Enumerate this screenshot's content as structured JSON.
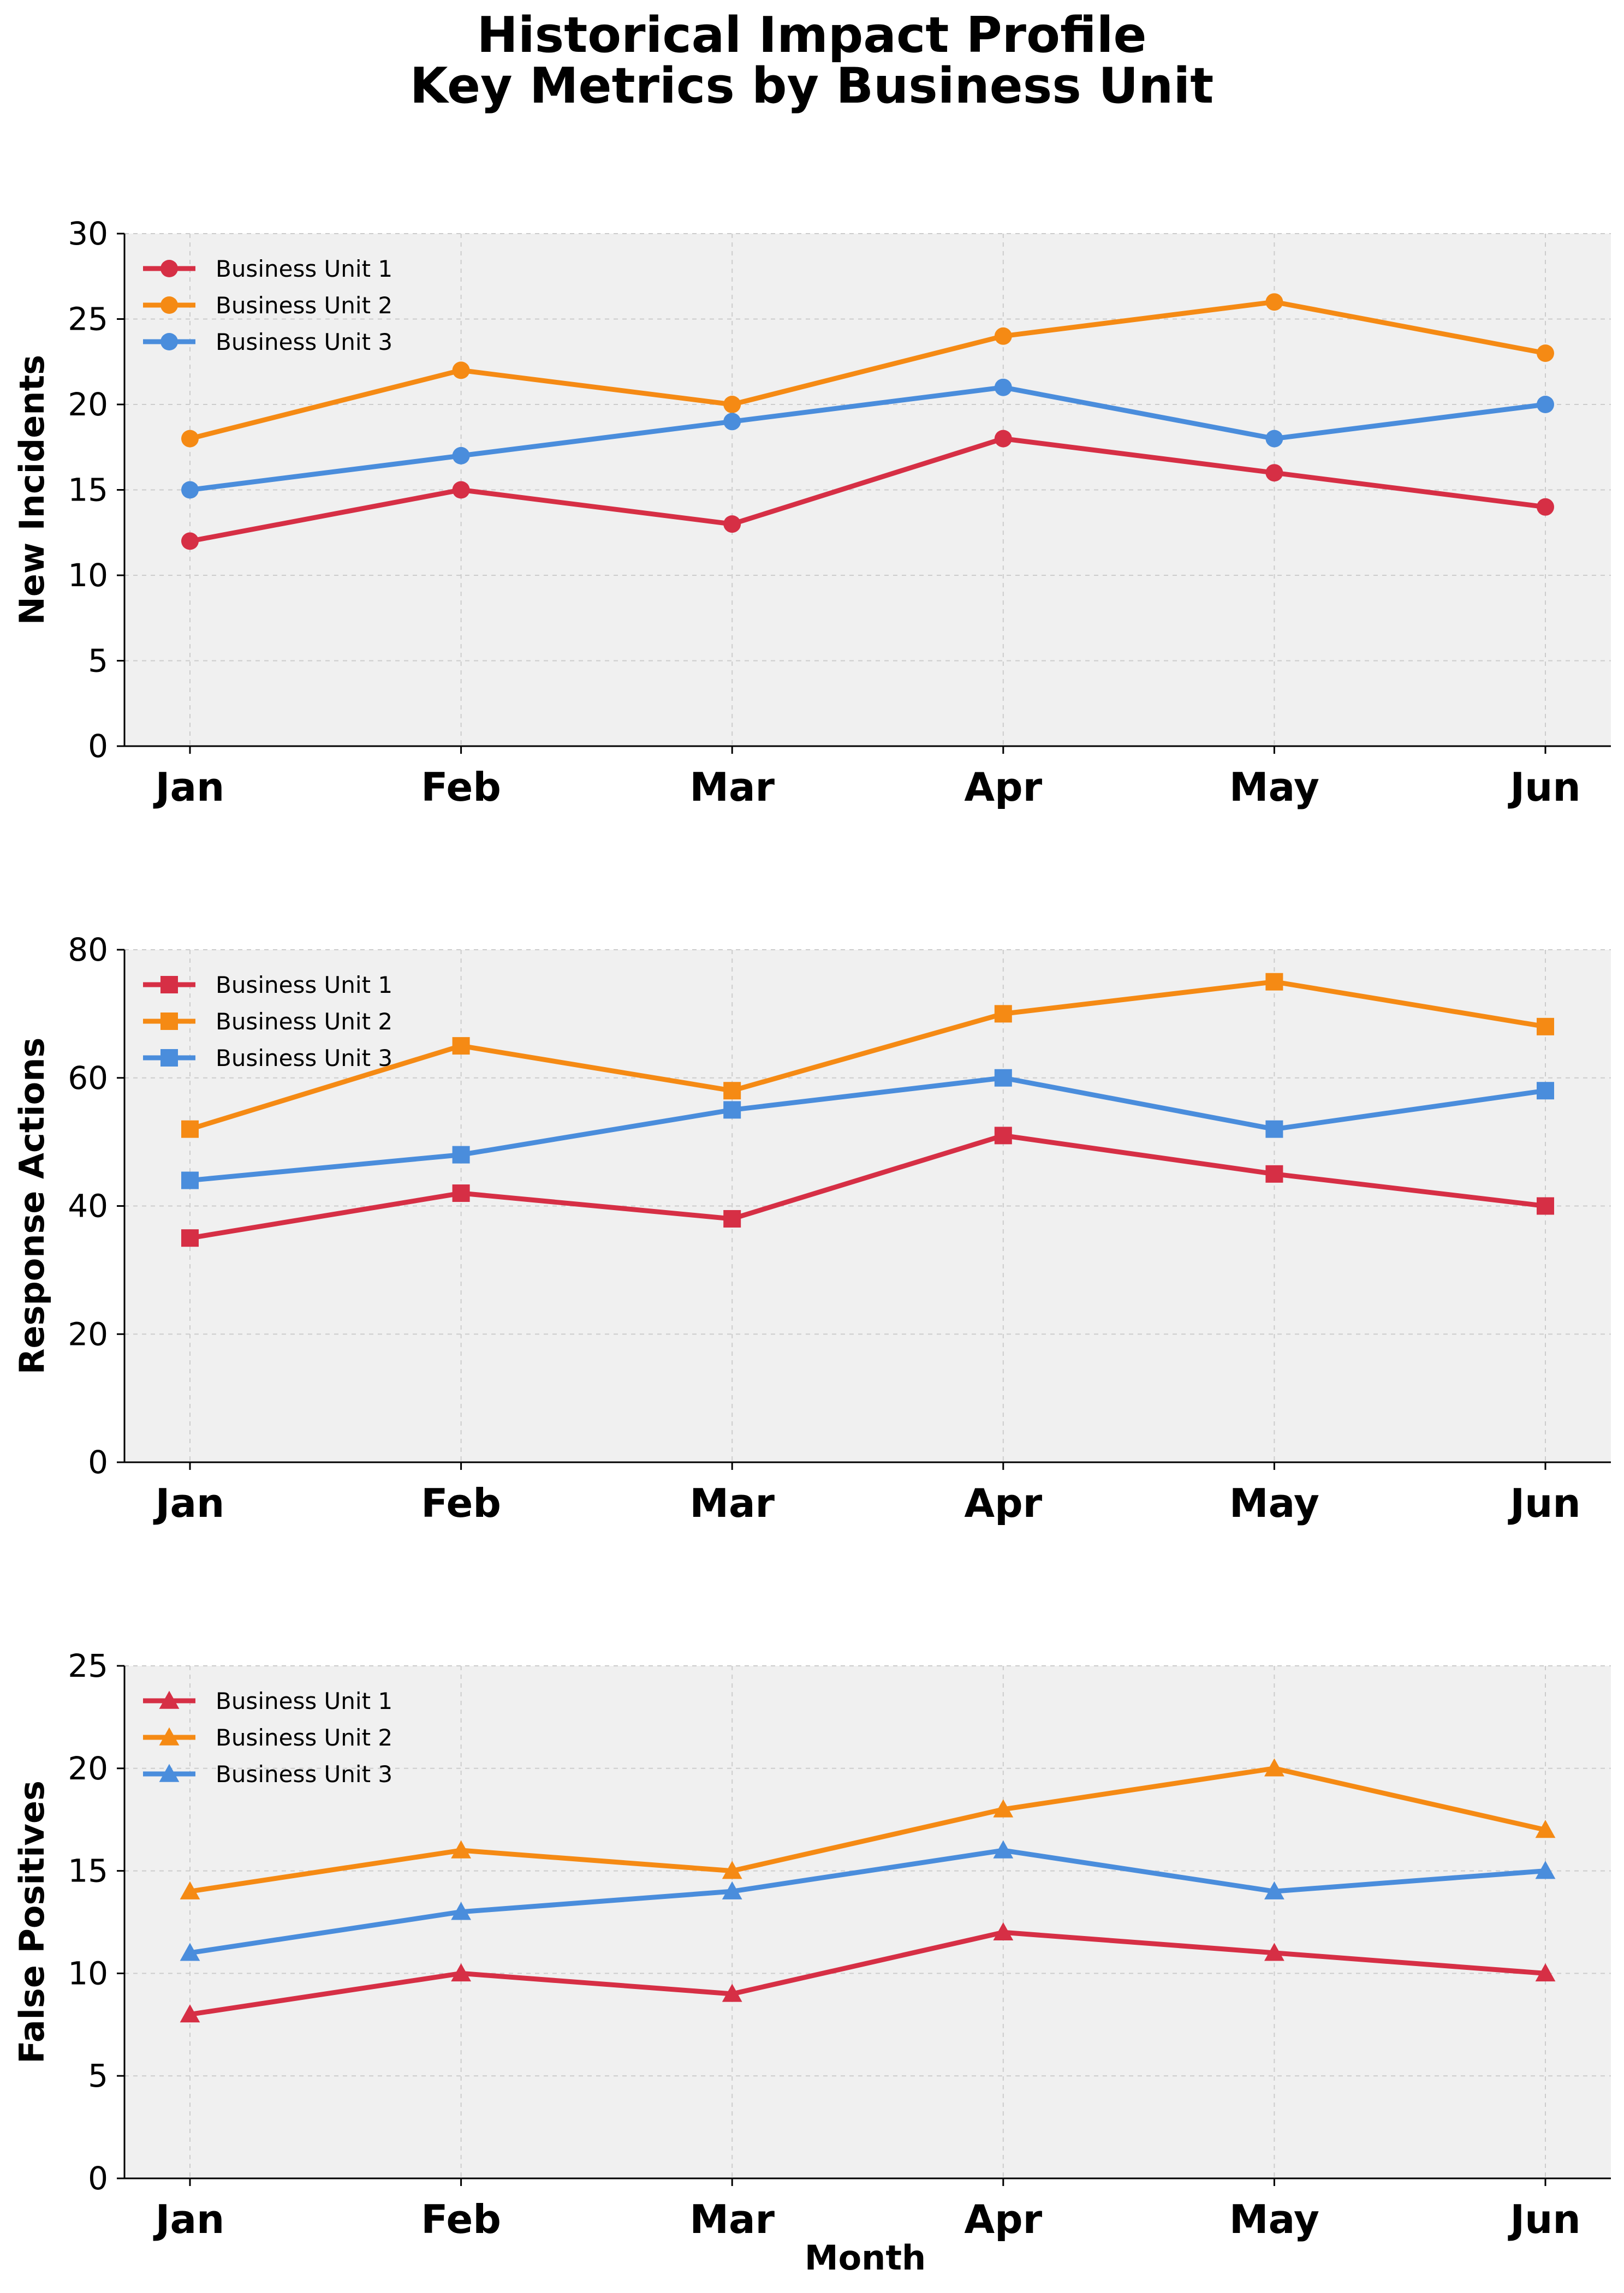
{
  "title": [
    "Historical Impact Profile",
    "Key Metrics by Business Unit"
  ],
  "chart_data": {
    "type": "line",
    "title": "Historical Impact Profile\nKey Metrics by Business Unit",
    "xlabel": "Month",
    "categories": [
      "Jan",
      "Feb",
      "Mar",
      "Apr",
      "May",
      "Jun"
    ],
    "grid": true,
    "legend_position": "top-left",
    "series_colors": [
      "#d62f45",
      "#f58a14",
      "#4a8ddc"
    ],
    "panels": [
      {
        "ylabel": "New Incidents",
        "ylim": [
          0,
          30
        ],
        "yticks": [
          0,
          5,
          10,
          15,
          20,
          25,
          30
        ],
        "marker": "circle",
        "series": [
          {
            "name": "Business Unit 1",
            "values": [
              12,
              15,
              13,
              18,
              16,
              14
            ]
          },
          {
            "name": "Business Unit 2",
            "values": [
              18,
              22,
              20,
              24,
              26,
              23
            ]
          },
          {
            "name": "Business Unit 3",
            "values": [
              15,
              17,
              19,
              21,
              18,
              20
            ]
          }
        ]
      },
      {
        "ylabel": "Response Actions",
        "ylim": [
          0,
          80
        ],
        "yticks": [
          0,
          20,
          40,
          60,
          80
        ],
        "marker": "square",
        "series": [
          {
            "name": "Business Unit 1",
            "values": [
              35,
              42,
              38,
              51,
              45,
              40
            ]
          },
          {
            "name": "Business Unit 2",
            "values": [
              52,
              65,
              58,
              70,
              75,
              68
            ]
          },
          {
            "name": "Business Unit 3",
            "values": [
              44,
              48,
              55,
              60,
              52,
              58
            ]
          }
        ]
      },
      {
        "ylabel": "False Positives",
        "ylim": [
          0,
          25
        ],
        "yticks": [
          0,
          5,
          10,
          15,
          20,
          25
        ],
        "marker": "triangle",
        "series": [
          {
            "name": "Business Unit 1",
            "values": [
              8,
              10,
              9,
              12,
              11,
              10
            ]
          },
          {
            "name": "Business Unit 2",
            "values": [
              14,
              16,
              15,
              18,
              20,
              17
            ]
          },
          {
            "name": "Business Unit 3",
            "values": [
              11,
              13,
              14,
              16,
              14,
              15
            ]
          }
        ]
      }
    ]
  }
}
